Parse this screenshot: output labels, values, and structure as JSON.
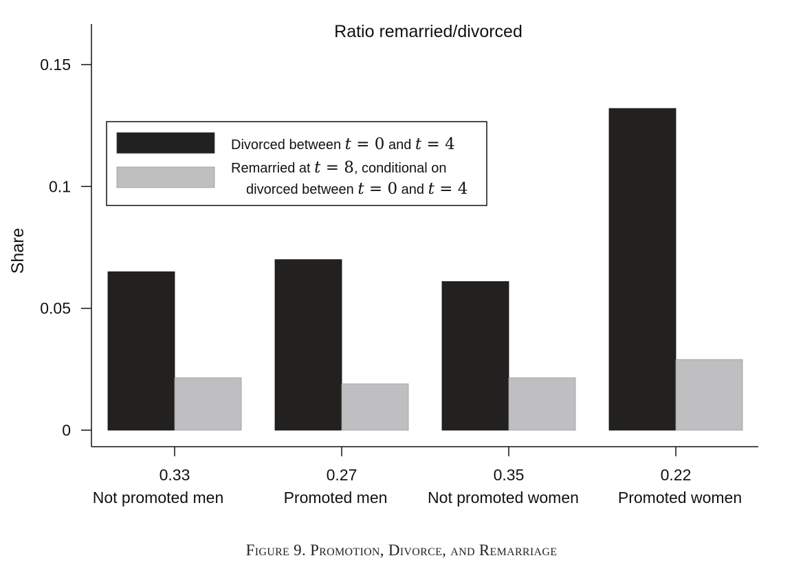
{
  "chart_data": {
    "type": "bar",
    "title": "Ratio remarried/divorced",
    "ylabel": "Share",
    "xlabel": "",
    "ylim": [
      0,
      0.16
    ],
    "yticks": [
      0,
      0.05,
      0.1,
      0.15
    ],
    "ytick_labels": [
      "0",
      "0.05",
      "0.1",
      "0.15"
    ],
    "categories": [
      "Not promoted men",
      "Promoted men",
      "Not promoted women",
      "Promoted women"
    ],
    "ratios": [
      "0.33",
      "0.27",
      "0.35",
      "0.22"
    ],
    "series": [
      {
        "name": "Divorced between t = 0 and t = 4",
        "values": [
          0.065,
          0.07,
          0.061,
          0.132
        ],
        "color": "#222120"
      },
      {
        "name": "Remarried at t = 8, conditional on divorced between t = 0 and t = 4",
        "values": [
          0.0215,
          0.019,
          0.0215,
          0.029
        ],
        "color": "#bfbfc1"
      }
    ],
    "legend_position": "top-left",
    "grid": false
  },
  "caption": "Figure 9. Promotion, Divorce, and Remarriage",
  "legend_text": {
    "s1_a": "Divorced between ",
    "s1_b": "t",
    "s1_c": " = 0",
    "s1_d": " and ",
    "s1_e": "t",
    "s1_f": " = 4",
    "s2_line1_a": "Remarried at ",
    "s2_line1_b": "t",
    "s2_line1_c": " = 8",
    "s2_line1_d": ", conditional on",
    "s2_line2_a": "divorced between ",
    "s2_line2_b": "t",
    "s2_line2_c": " = 0",
    "s2_line2_d": " and ",
    "s2_line2_e": "t",
    "s2_line2_f": " = 4"
  }
}
